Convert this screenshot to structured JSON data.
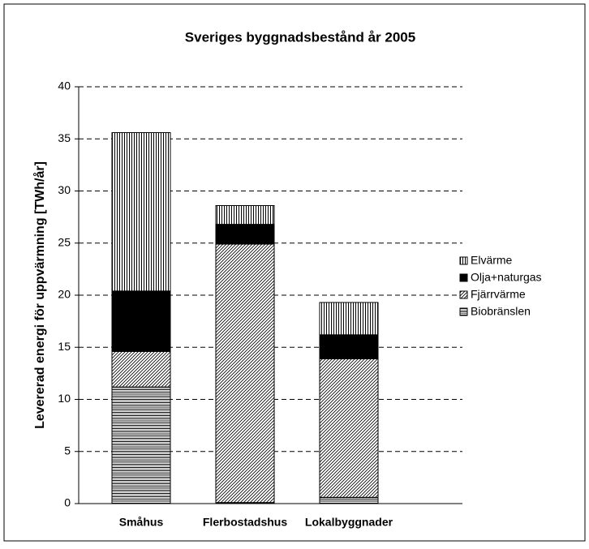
{
  "chart_data": {
    "type": "stacked-bar",
    "title": "Sveriges byggnadsbestånd år 2005",
    "y_label": "Levererad energi för uppvärmning [TWh/år]",
    "categories": [
      "Småhus",
      "Flerbostadshus",
      "Lokalbyggnader"
    ],
    "series": [
      {
        "name": "Biobränslen",
        "color": "#000000",
        "pattern": "horizontal",
        "values": [
          11.2,
          0.1,
          0.6
        ]
      },
      {
        "name": "Fjärrvärme",
        "color": "#000000",
        "pattern": "diagonal",
        "values": [
          3.4,
          24.8,
          13.3
        ]
      },
      {
        "name": "Olja+naturgas",
        "color": "#000000",
        "pattern": "solid",
        "values": [
          5.8,
          1.9,
          2.3
        ]
      },
      {
        "name": "Elvärme",
        "color": "#000000",
        "pattern": "vertical",
        "values": [
          15.2,
          1.8,
          3.1
        ]
      }
    ],
    "ylim": [
      0,
      40
    ],
    "yticks": [
      0,
      5,
      10,
      15,
      20,
      25,
      30,
      35,
      40
    ],
    "grid": true,
    "legend": "right"
  }
}
